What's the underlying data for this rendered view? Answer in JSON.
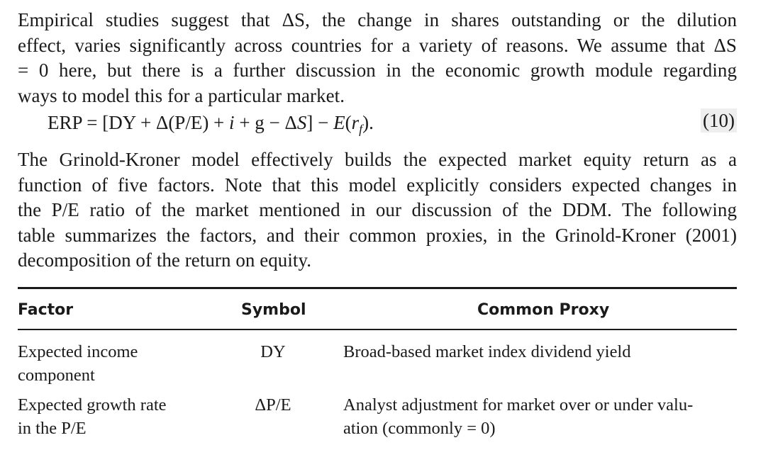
{
  "paragraph1": {
    "lines": [
      "Empirical studies suggest that ΔS, the change in shares outstanding or the dilution",
      "effect, varies significantly across countries for a variety of reasons. We assume that ΔS",
      "= 0 here, but there is a further discussion in the economic growth module regarding",
      "ways to model this for a particular market."
    ]
  },
  "equation": {
    "lhs": "ERP = [DY + Δ(P/E) + ",
    "i": "i",
    "mid": " + g − Δ",
    "S": "S",
    "close": "] − ",
    "E": "E",
    "open_r": "(",
    "r": "r",
    "sub": "f",
    "end": ").",
    "number": "(10)"
  },
  "paragraph2": {
    "lines": [
      "The Grinold-Kroner model effectively builds the expected market equity return as a",
      "function of five factors. Note that this model explicitly considers expected changes in",
      "the P/E ratio of the market mentioned in our discussion of the DDM. The following",
      "table summarizes the factors, and their common proxies, in the Grinold-Kroner (2001)",
      "decomposition of the return on equity."
    ]
  },
  "table": {
    "headers": {
      "factor": "Factor",
      "symbol": "Symbol",
      "proxy": "Common Proxy"
    },
    "rows": [
      {
        "factor_lines": [
          "Expected income",
          "component"
        ],
        "symbol": "DY",
        "proxy_lines": [
          "Broad-based market index dividend yield"
        ]
      },
      {
        "factor_lines": [
          "Expected growth rate",
          "in the P/E"
        ],
        "symbol": "ΔP/E",
        "proxy_lines": [
          "Analyst adjustment for market over or under valu-",
          "ation (commonly = 0)"
        ]
      }
    ]
  }
}
